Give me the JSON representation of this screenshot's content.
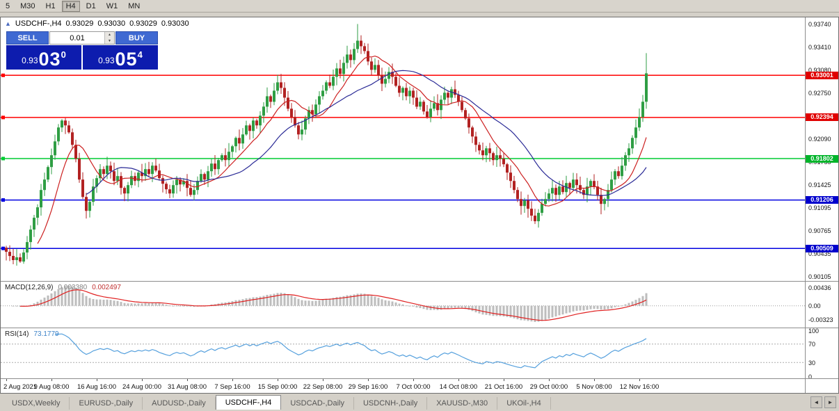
{
  "toolbar": {
    "timeframes": [
      {
        "label": "5",
        "active": false
      },
      {
        "label": "M30",
        "active": false
      },
      {
        "label": "H1",
        "active": false
      },
      {
        "label": "H4",
        "active": true
      },
      {
        "label": "D1",
        "active": false
      },
      {
        "label": "W1",
        "active": false
      },
      {
        "label": "MN",
        "active": false
      }
    ]
  },
  "chart": {
    "header": {
      "collapse_icon": "▲",
      "symbol_period": "USDCHF-,H4",
      "open": "0.93029",
      "high": "0.93030",
      "low": "0.93029",
      "close": "0.93030"
    },
    "trade_panel": {
      "sell_label": "SELL",
      "buy_label": "BUY",
      "lot": "0.01",
      "spin_up": "▲",
      "spin_down": "▼",
      "sell_price": {
        "prefix": "0.93",
        "big": "03",
        "sup": "0"
      },
      "buy_price": {
        "prefix": "0.93",
        "big": "05",
        "sup": "4"
      }
    },
    "hlines": [
      {
        "price": 0.93001,
        "label": "0.93001",
        "color": "#ff0000",
        "badge": "#e00000"
      },
      {
        "price": 0.92394,
        "label": "0.92394",
        "color": "#ff0000",
        "badge": "#e00000"
      },
      {
        "price": 0.91802,
        "label": "0.91802",
        "color": "#00cc33",
        "badge": "#00b42a"
      },
      {
        "price": 0.91206,
        "label": "0.91206",
        "color": "#0000e0",
        "badge": "#0000cd"
      },
      {
        "price": 0.90509,
        "label": "0.90509",
        "color": "#0000e0",
        "badge": "#0000cd"
      }
    ],
    "y_axis": [
      "0.93740",
      "0.93410",
      "0.93080",
      "0.92750",
      "0.92420",
      "0.92090",
      "0.91755",
      "0.91425",
      "0.91095",
      "0.90765",
      "0.90435",
      "0.90105"
    ],
    "x_axis": [
      "2 Aug 2021",
      "9 Aug 08:00",
      "16 Aug 16:00",
      "24 Aug 00:00",
      "31 Aug 08:00",
      "7 Sep 16:00",
      "15 Sep 00:00",
      "22 Sep 08:00",
      "29 Sep 16:00",
      "7 Oct 00:00",
      "14 Oct 08:00",
      "21 Oct 16:00",
      "29 Oct 00:00",
      "5 Nov 08:00",
      "12 Nov 16:00"
    ]
  },
  "indicators": {
    "macd": {
      "name": "MACD(12,26,9)",
      "value_main": "0.003380",
      "value_signal": "0.002497",
      "scale": [
        {
          "label": "0.00436",
          "value": 0.00436
        },
        {
          "label": "0.00",
          "value": 0
        },
        {
          "label": "-0.00323",
          "value": -0.00323
        }
      ]
    },
    "rsi": {
      "name": "RSI(14)",
      "value": "73.1779",
      "levels": [
        70,
        30
      ],
      "scale": [
        {
          "label": "100",
          "value": 100
        },
        {
          "label": "70",
          "value": 70
        },
        {
          "label": "30",
          "value": 30
        },
        {
          "label": "0",
          "value": 0
        }
      ]
    }
  },
  "tabs": {
    "left_arrow": "◄",
    "right_arrow": "►",
    "items": [
      {
        "label": "USDX,Weekly",
        "active": false
      },
      {
        "label": "EURUSD-,Daily",
        "active": false
      },
      {
        "label": "AUDUSD-,Daily",
        "active": false
      },
      {
        "label": "USDCHF-,H4",
        "active": true
      },
      {
        "label": "USDCAD-,Daily",
        "active": false
      },
      {
        "label": "USDCNH-,Daily",
        "active": false
      },
      {
        "label": "XAUUSD-,M30",
        "active": false
      },
      {
        "label": "UKOil-,H4",
        "active": false
      }
    ]
  },
  "colors": {
    "candle_up": "#2f9e44",
    "candle_down": "#b22222",
    "ma_fast": "#cc2020",
    "ma_slow": "#2a2a96",
    "macd_hist": "#bdbdbd",
    "macd_signal": "#e02020",
    "rsi_line": "#55a0dd"
  },
  "chart_data": {
    "type": "candlestick",
    "symbol": "USDCHF-",
    "timeframe": "H4",
    "price_max": 0.93795,
    "price_min": 0.9005,
    "candle_spacing_px": 5,
    "open_first": 0.9052,
    "closes": [
      0.9046,
      0.904,
      0.9034,
      0.9038,
      0.9032,
      0.9045,
      0.906,
      0.9078,
      0.9095,
      0.911,
      0.9135,
      0.915,
      0.9168,
      0.9185,
      0.9205,
      0.9225,
      0.9235,
      0.9228,
      0.9218,
      0.92,
      0.918,
      0.915,
      0.9125,
      0.9105,
      0.9118,
      0.914,
      0.9152,
      0.9165,
      0.9158,
      0.917,
      0.9162,
      0.9148,
      0.9155,
      0.9138,
      0.913,
      0.9142,
      0.9155,
      0.9148,
      0.916,
      0.9155,
      0.9165,
      0.9158,
      0.917,
      0.9163,
      0.9152,
      0.9144,
      0.9136,
      0.913,
      0.9142,
      0.915,
      0.9143,
      0.9148,
      0.9138,
      0.9128,
      0.9135,
      0.9148,
      0.9158,
      0.915,
      0.9162,
      0.9173,
      0.9165,
      0.9178,
      0.9185,
      0.9178,
      0.919,
      0.9198,
      0.921,
      0.9202,
      0.9215,
      0.9228,
      0.922,
      0.9235,
      0.9228,
      0.9242,
      0.9255,
      0.927,
      0.9262,
      0.9278,
      0.929,
      0.9282,
      0.9268,
      0.9252,
      0.924,
      0.9228,
      0.9215,
      0.9222,
      0.9238,
      0.925,
      0.9244,
      0.9258,
      0.927,
      0.9278,
      0.929,
      0.9285,
      0.9298,
      0.931,
      0.9302,
      0.9318,
      0.933,
      0.9322,
      0.9338,
      0.935,
      0.9342,
      0.9335,
      0.932,
      0.9308,
      0.9315,
      0.93,
      0.9288,
      0.9295,
      0.9305,
      0.9298,
      0.9285,
      0.9275,
      0.9282,
      0.927,
      0.9278,
      0.9268,
      0.9255,
      0.9262,
      0.9248,
      0.924,
      0.9252,
      0.926,
      0.925,
      0.9265,
      0.9275,
      0.9268,
      0.928,
      0.9272,
      0.9262,
      0.925,
      0.9238,
      0.9225,
      0.9212,
      0.92,
      0.9192,
      0.9185,
      0.9195,
      0.9188,
      0.9178,
      0.9185,
      0.918,
      0.9172,
      0.916,
      0.9148,
      0.9135,
      0.9122,
      0.9112,
      0.912,
      0.9108,
      0.9098,
      0.909,
      0.9102,
      0.9115,
      0.9122,
      0.913,
      0.9138,
      0.9128,
      0.914,
      0.9132,
      0.9145,
      0.9138,
      0.915,
      0.9142,
      0.9135,
      0.9128,
      0.914,
      0.9148,
      0.914,
      0.9128,
      0.9115,
      0.9122,
      0.9135,
      0.915,
      0.9162,
      0.9155,
      0.917,
      0.9185,
      0.9195,
      0.921,
      0.9225,
      0.924,
      0.9262,
      0.9303
    ],
    "overrides": {
      "2": {
        "l": 0.9028
      },
      "4": {
        "l": 0.903
      },
      "78": {
        "h": 0.9301
      },
      "101": {
        "h": 0.9374
      },
      "152": {
        "l": 0.9086
      },
      "171": {
        "l": 0.91
      },
      "184": {
        "h": 0.9332
      }
    },
    "moving_averages": [
      {
        "period": 10,
        "color": "#cc2020"
      },
      {
        "period": 24,
        "color": "#2a2a96"
      }
    ],
    "macd": {
      "fast": 12,
      "slow": 26,
      "signal": 9
    },
    "rsi_period": 14
  }
}
